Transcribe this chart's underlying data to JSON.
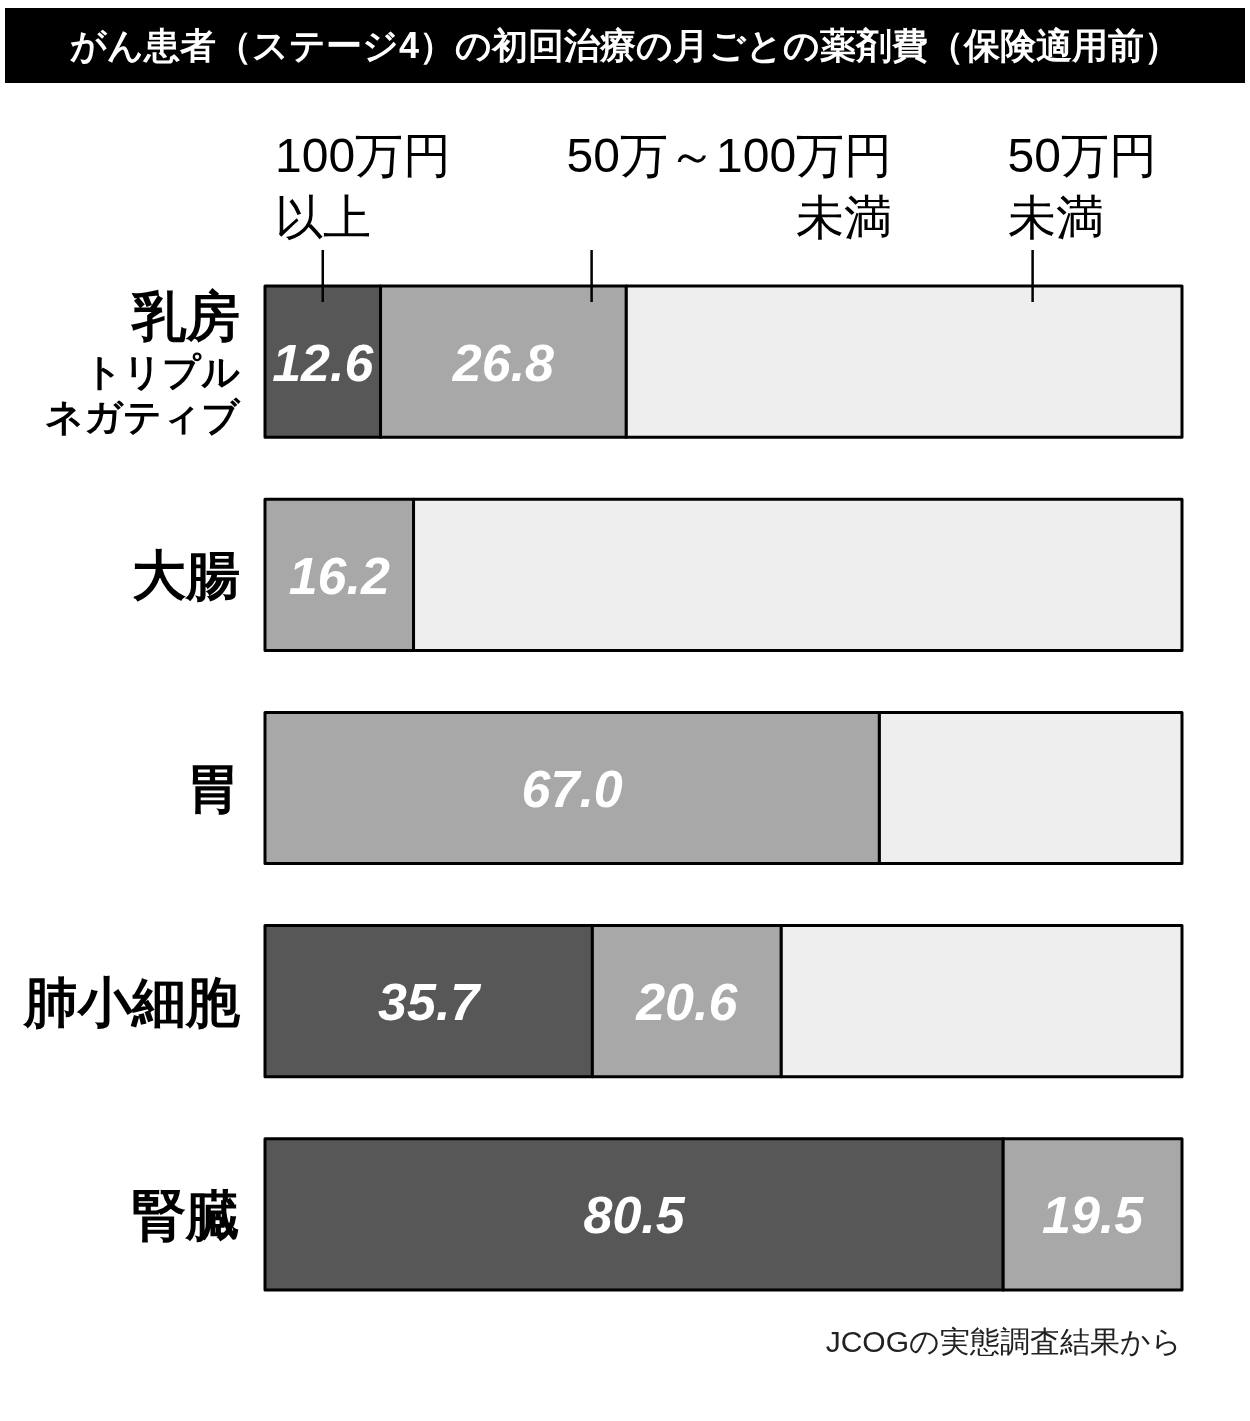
{
  "chart_data": {
    "type": "bar",
    "orientation": "horizontal",
    "stacked": true,
    "title": "がん患者（ステージ4）の初回治療の月ごとの薬剤費（保険適用前）",
    "categories": [
      "乳房トリプルネガティブ",
      "大腸",
      "胃",
      "肺小細胞",
      "腎臓"
    ],
    "series": [
      {
        "name": "100万円以上",
        "color": "#575757",
        "values": [
          12.6,
          0,
          0,
          35.7,
          80.5
        ],
        "value_labels": [
          "12.6",
          null,
          null,
          "35.7",
          "80.5"
        ]
      },
      {
        "name": "50万～100万円未満",
        "color": "#a8a8a8",
        "values": [
          26.8,
          16.2,
          67.0,
          20.6,
          19.5
        ],
        "value_labels": [
          "26.8",
          "16.2",
          "67.0",
          "20.6",
          "19.5"
        ]
      },
      {
        "name": "50万円未満",
        "color": "#eeeeee",
        "values": [
          60.6,
          83.8,
          33.0,
          43.7,
          0
        ]
      }
    ],
    "legend": "top",
    "annotations": [
      "JCOGの実態調査結果から"
    ]
  }
}
